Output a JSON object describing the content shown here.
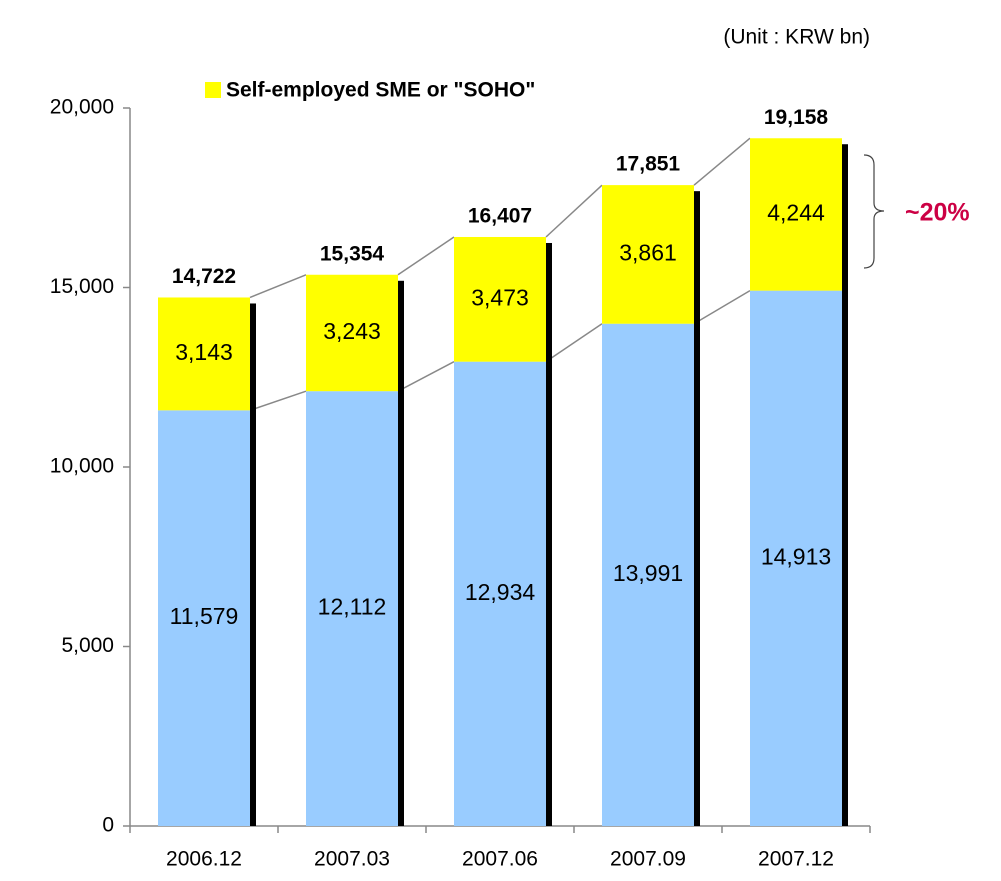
{
  "chart_data": {
    "type": "stacked-bar",
    "unit": "(Unit : KRW bn)",
    "annotation": "~20%",
    "categories": [
      "2006.12",
      "2007.03",
      "2007.06",
      "2007.09",
      "2007.12"
    ],
    "series": [
      {
        "color": "#99ccff",
        "values": [
          11579,
          12112,
          12934,
          13991,
          14913
        ],
        "value_labels": [
          "11,579",
          "12,112",
          "12,934",
          "13,991",
          "14,913"
        ]
      },
      {
        "name": "Self-employed SME or \"SOHO\"",
        "color": "#ffff00",
        "values": [
          3143,
          3243,
          3473,
          3861,
          4244
        ],
        "value_labels": [
          "3,143",
          "3,243",
          "3,473",
          "3,861",
          "4,244"
        ]
      }
    ],
    "totals": {
      "values": [
        14722,
        15354,
        16407,
        17851,
        19158
      ],
      "value_labels": [
        "14,722",
        "15,354",
        "16,407",
        "17,851",
        "19,158"
      ]
    },
    "ylim": [
      0,
      20000
    ],
    "yticks": [
      0,
      {
        "value": 5000,
        "label": "5,000"
      },
      {
        "value": 10000,
        "label": "10,000"
      },
      {
        "value": 15000,
        "label": "15,000"
      },
      {
        "value": 20000,
        "label": "20,000"
      }
    ]
  }
}
